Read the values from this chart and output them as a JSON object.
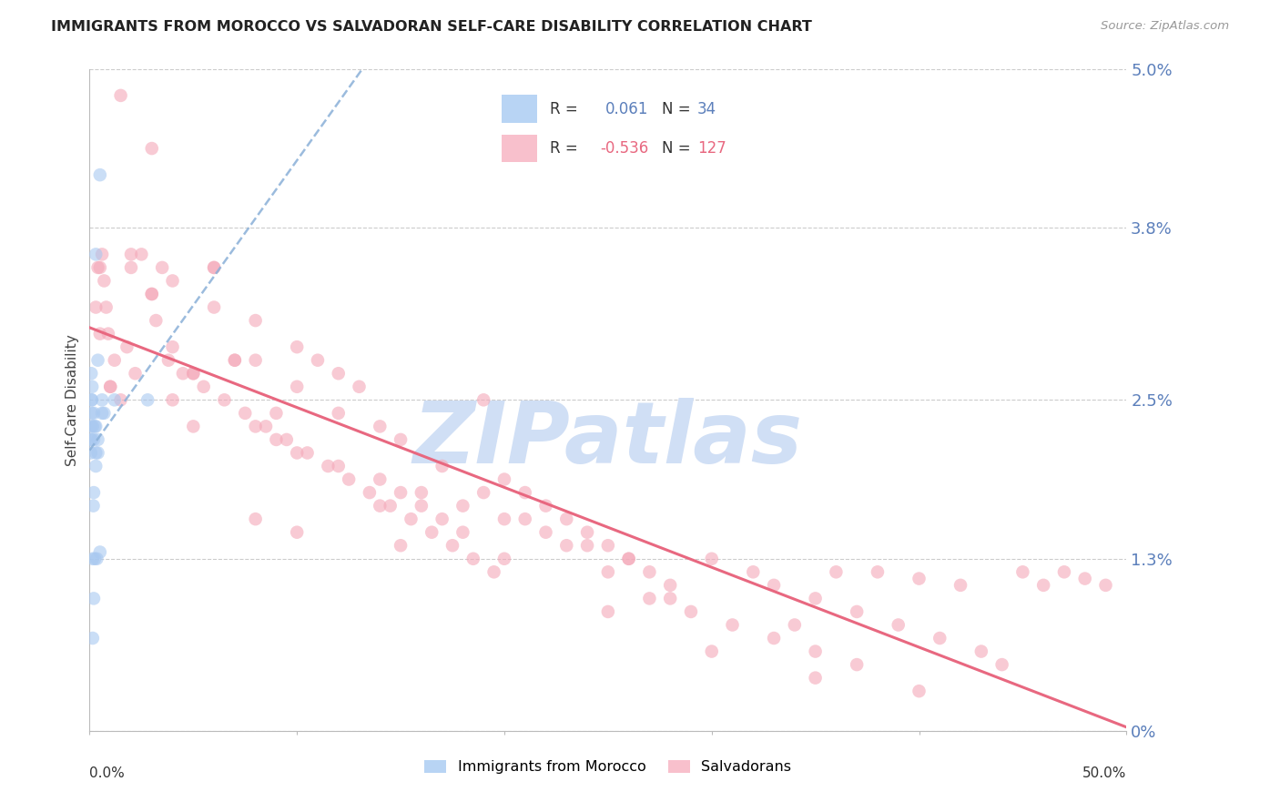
{
  "title": "IMMIGRANTS FROM MOROCCO VS SALVADORAN SELF-CARE DISABILITY CORRELATION CHART",
  "source": "Source: ZipAtlas.com",
  "ylabel": "Self-Care Disability",
  "legend_entry1_label": "Immigrants from Morocco",
  "legend_entry2_label": "Salvadorans",
  "legend_r1_val": "0.061",
  "legend_n1_val": "34",
  "legend_r2_val": "-0.536",
  "legend_n2_val": "127",
  "blue_scatter_color": "#a8c8f0",
  "pink_scatter_color": "#f4a8b8",
  "trendline_blue_color": "#8ab0d8",
  "trendline_pink_color": "#e86880",
  "legend_blue_box": "#b8d4f4",
  "legend_pink_box": "#f8c0cc",
  "grid_color": "#cccccc",
  "right_tick_color": "#5b7fbb",
  "watermark_color": "#d0dff5",
  "xlim": [
    0.0,
    50.0
  ],
  "ylim": [
    0.0,
    5.0
  ],
  "ytick_vals": [
    0.0,
    1.3,
    2.5,
    3.8,
    5.0
  ],
  "ytick_labels": [
    "0%",
    "1.3%",
    "2.5%",
    "3.8%",
    "5.0%"
  ],
  "morocco_x": [
    0.05,
    0.08,
    0.06,
    0.1,
    0.1,
    0.1,
    0.12,
    0.15,
    0.15,
    0.18,
    0.2,
    0.2,
    0.2,
    0.25,
    0.25,
    0.3,
    0.3,
    0.3,
    0.35,
    0.4,
    0.4,
    0.4,
    0.5,
    0.5,
    0.6,
    0.6,
    0.7,
    1.2,
    2.8,
    0.08,
    0.1,
    0.2,
    0.3,
    0.15
  ],
  "morocco_y": [
    2.2,
    2.3,
    2.1,
    2.2,
    2.5,
    2.4,
    2.6,
    2.3,
    1.3,
    1.7,
    2.4,
    1.8,
    1.0,
    2.3,
    1.3,
    3.6,
    2.0,
    2.3,
    1.3,
    2.8,
    2.1,
    2.2,
    4.2,
    1.35,
    2.4,
    2.5,
    2.4,
    2.5,
    2.5,
    2.7,
    2.5,
    2.2,
    2.1,
    0.7
  ],
  "salvador_x": [
    0.3,
    0.4,
    0.5,
    0.6,
    0.7,
    0.8,
    0.9,
    1.0,
    1.2,
    1.5,
    1.8,
    2.0,
    2.2,
    2.5,
    3.0,
    3.0,
    3.2,
    3.5,
    3.8,
    4.0,
    4.5,
    5.0,
    5.5,
    6.0,
    6.5,
    7.0,
    7.5,
    8.0,
    8.5,
    9.0,
    9.5,
    10.0,
    10.5,
    11.0,
    11.5,
    12.0,
    12.5,
    13.0,
    13.5,
    14.0,
    14.5,
    15.0,
    15.5,
    16.0,
    16.5,
    17.0,
    17.5,
    18.0,
    18.5,
    19.0,
    19.5,
    20.0,
    21.0,
    22.0,
    23.0,
    24.0,
    25.0,
    26.0,
    27.0,
    28.0,
    30.0,
    32.0,
    33.0,
    34.0,
    35.0,
    36.0,
    37.0,
    38.0,
    39.0,
    40.0,
    41.0,
    42.0,
    43.0,
    44.0,
    45.0,
    46.0,
    47.0,
    48.0,
    49.0,
    0.5,
    1.0,
    1.5,
    2.0,
    3.0,
    4.0,
    5.0,
    6.0,
    7.0,
    8.0,
    9.0,
    10.0,
    12.0,
    14.0,
    16.0,
    18.0,
    20.0,
    22.0,
    24.0,
    26.0,
    28.0,
    4.0,
    5.0,
    6.0,
    8.0,
    10.0,
    12.0,
    14.0,
    15.0,
    17.0,
    19.0,
    21.0,
    23.0,
    25.0,
    27.0,
    29.0,
    31.0,
    33.0,
    35.0,
    37.0,
    40.0,
    8.0,
    10.0,
    15.0,
    20.0,
    25.0,
    30.0,
    35.0
  ],
  "salvador_y": [
    3.2,
    3.5,
    3.0,
    3.6,
    3.4,
    3.2,
    3.0,
    2.6,
    2.8,
    4.8,
    2.9,
    3.5,
    2.7,
    3.6,
    4.4,
    3.3,
    3.1,
    3.5,
    2.8,
    3.4,
    2.7,
    2.7,
    2.6,
    3.5,
    2.5,
    2.8,
    2.4,
    3.1,
    2.3,
    2.4,
    2.2,
    2.9,
    2.1,
    2.8,
    2.0,
    2.7,
    1.9,
    2.6,
    1.8,
    1.7,
    1.7,
    1.8,
    1.6,
    1.7,
    1.5,
    1.6,
    1.4,
    1.5,
    1.3,
    2.5,
    1.2,
    1.9,
    1.8,
    1.7,
    1.6,
    1.5,
    1.4,
    1.3,
    1.2,
    1.1,
    1.3,
    1.2,
    1.1,
    0.8,
    1.0,
    1.2,
    0.9,
    1.2,
    0.8,
    1.15,
    0.7,
    1.1,
    0.6,
    0.5,
    1.2,
    1.1,
    1.2,
    1.15,
    1.1,
    3.5,
    2.6,
    2.5,
    3.6,
    3.3,
    2.9,
    2.7,
    3.2,
    2.8,
    2.3,
    2.2,
    2.1,
    2.0,
    1.9,
    1.8,
    1.7,
    1.6,
    1.5,
    1.4,
    1.3,
    1.0,
    2.5,
    2.3,
    3.5,
    2.8,
    2.6,
    2.4,
    2.3,
    2.2,
    2.0,
    1.8,
    1.6,
    1.4,
    1.2,
    1.0,
    0.9,
    0.8,
    0.7,
    0.6,
    0.5,
    0.3,
    1.6,
    1.5,
    1.4,
    1.3,
    0.9,
    0.6,
    0.4
  ]
}
